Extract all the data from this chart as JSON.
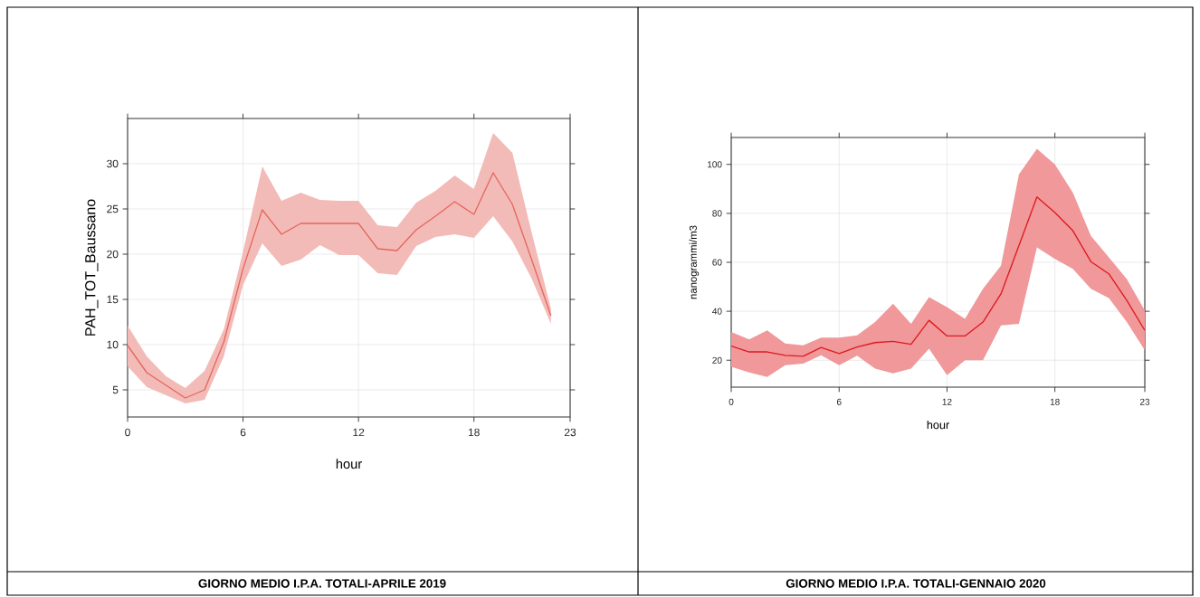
{
  "chart_data": [
    {
      "type": "line",
      "title": "GIORNO MEDIO I.P.A. TOTALI-APRILE 2019",
      "xlabel": "hour",
      "ylabel": "PAH_TOT_Baussano",
      "x": [
        0,
        1,
        2,
        3,
        4,
        5,
        6,
        7,
        8,
        9,
        10,
        11,
        12,
        13,
        14,
        15,
        16,
        17,
        18,
        19,
        20,
        21,
        22
      ],
      "series": [
        {
          "color": "#e4675f",
          "values": [
            9.9,
            6.9,
            5.5,
            4.1,
            5.0,
            10.3,
            18.4,
            24.9,
            22.2,
            23.4,
            23.4,
            23.4,
            23.4,
            20.6,
            20.4,
            22.7,
            24.2,
            25.8,
            24.4,
            29.0,
            25.5,
            19.4,
            13.2
          ],
          "lower": [
            7.6,
            5.3,
            4.4,
            3.5,
            3.9,
            8.7,
            16.6,
            21.2,
            18.7,
            19.4,
            21.0,
            19.9,
            19.9,
            17.9,
            17.7,
            20.9,
            21.9,
            22.2,
            21.8,
            24.2,
            21.4,
            17.3,
            12.3
          ],
          "upper": [
            12.1,
            8.7,
            6.5,
            5.2,
            7.1,
            11.7,
            20.3,
            29.7,
            25.9,
            26.8,
            26.0,
            25.9,
            25.9,
            23.2,
            23.0,
            25.7,
            27.0,
            28.7,
            27.2,
            33.4,
            31.2,
            22.4,
            14.0
          ]
        }
      ],
      "xlim": [
        0,
        23
      ],
      "xticks": [
        0,
        6,
        12,
        18,
        23
      ],
      "ylim": [
        2,
        35
      ],
      "yticks": [
        5,
        10,
        15,
        20,
        25,
        30
      ],
      "grid": true
    },
    {
      "type": "line",
      "title": "GIORNO MEDIO I.P.A. TOTALI-GENNAIO 2020",
      "xlabel": "hour",
      "ylabel": "nanogrammi/m3",
      "x": [
        0,
        1,
        2,
        3,
        4,
        5,
        6,
        7,
        8,
        9,
        10,
        11,
        12,
        13,
        14,
        15,
        16,
        17,
        18,
        19,
        20,
        21,
        22,
        23
      ],
      "series": [
        {
          "color": "#dd1a1e",
          "values": [
            25.8,
            23.4,
            23.4,
            22.0,
            21.6,
            25.2,
            22.7,
            25.4,
            27.2,
            27.7,
            26.5,
            36.3,
            29.9,
            29.9,
            35.6,
            47.1,
            66.8,
            86.7,
            80.3,
            72.9,
            60.3,
            55.3,
            44.4,
            32.2
          ],
          "lower": [
            17.3,
            15.0,
            13.2,
            18.0,
            18.6,
            22.0,
            18.0,
            21.8,
            16.6,
            14.6,
            16.6,
            24.7,
            13.9,
            20.0,
            20.0,
            34.2,
            34.9,
            66.1,
            61.4,
            57.3,
            49.2,
            45.4,
            35.6,
            24.1
          ],
          "upper": [
            31.5,
            28.5,
            32.2,
            26.8,
            26.1,
            29.2,
            29.2,
            30.2,
            35.6,
            43.1,
            34.9,
            45.8,
            41.7,
            36.9,
            49.2,
            58.6,
            95.9,
            106.4,
            100.0,
            88.5,
            70.8,
            62.0,
            53.2,
            40.3
          ]
        }
      ],
      "xlim": [
        0,
        23
      ],
      "xticks": [
        0,
        6,
        12,
        18,
        23
      ],
      "ylim": [
        9,
        111
      ],
      "yticks": [
        20,
        40,
        60,
        80,
        100
      ],
      "grid": true
    }
  ]
}
